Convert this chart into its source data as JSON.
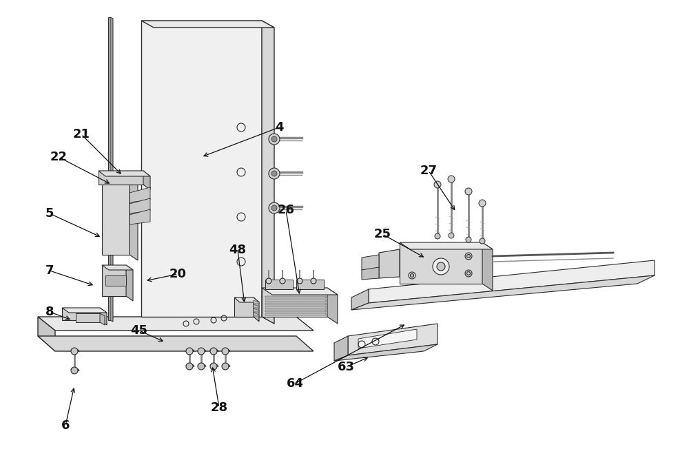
{
  "bg_color": "#ffffff",
  "line_color": "#2a2a2a",
  "figsize": [
    10.0,
    6.68
  ],
  "dpi": 100,
  "labels_info": [
    [
      "21",
      118,
      195,
      178,
      255
    ],
    [
      "22",
      85,
      228,
      162,
      268
    ],
    [
      "4",
      405,
      185,
      292,
      228
    ],
    [
      "5",
      72,
      310,
      148,
      345
    ],
    [
      "7",
      72,
      393,
      138,
      415
    ],
    [
      "8",
      72,
      453,
      105,
      465
    ],
    [
      "20",
      258,
      398,
      210,
      408
    ],
    [
      "25",
      555,
      340,
      618,
      375
    ],
    [
      "26",
      415,
      305,
      435,
      430
    ],
    [
      "27",
      622,
      248,
      662,
      308
    ],
    [
      "28",
      318,
      592,
      308,
      530
    ],
    [
      "45",
      202,
      480,
      240,
      497
    ],
    [
      "48",
      345,
      363,
      355,
      442
    ],
    [
      "63",
      502,
      533,
      537,
      518
    ],
    [
      "64",
      428,
      557,
      590,
      470
    ],
    [
      "6",
      95,
      618,
      108,
      560
    ]
  ]
}
